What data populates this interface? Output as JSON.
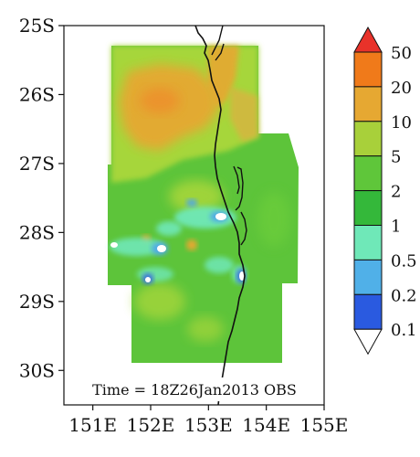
{
  "map": {
    "latitude_labels": [
      "25S",
      "26S",
      "27S",
      "28S",
      "29S",
      "30S"
    ],
    "longitude_labels": [
      "151E",
      "152E",
      "153E",
      "154E",
      "155E"
    ],
    "lat_range": [
      -30.5,
      -25.0
    ],
    "lon_range": [
      150.5,
      155.0
    ],
    "time_label": "Time = 18Z26Jan2013 OBS"
  },
  "colorbar": {
    "labels": [
      "50",
      "20",
      "10",
      "5",
      "2",
      "1",
      "0.5",
      "0.2",
      "0.1"
    ],
    "colors_top_to_bottom": [
      "#e8322a",
      "#f07a1a",
      "#e6a832",
      "#a8d03a",
      "#5fc63a",
      "#34b83a",
      "#6fe8b8",
      "#50b0e8",
      "#2a5ae0",
      "#ffffff"
    ],
    "extend": "both"
  },
  "colors": {
    "land_outline": "#111111",
    "missing_region": "#ffffff"
  }
}
